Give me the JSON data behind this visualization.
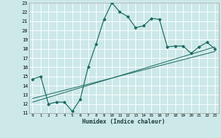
{
  "title": "",
  "xlabel": "Humidex (Indice chaleur)",
  "bg_color": "#cce8e8",
  "grid_color": "#ffffff",
  "line_color": "#1a6b60",
  "xlim": [
    -0.5,
    23.5
  ],
  "ylim": [
    11,
    23
  ],
  "xticks": [
    0,
    1,
    2,
    3,
    4,
    5,
    6,
    7,
    8,
    9,
    10,
    11,
    12,
    13,
    14,
    15,
    16,
    17,
    18,
    19,
    20,
    21,
    22,
    23
  ],
  "yticks": [
    11,
    12,
    13,
    14,
    15,
    16,
    17,
    18,
    19,
    20,
    21,
    22,
    23
  ],
  "curve1_x": [
    0,
    1,
    2,
    3,
    4,
    5,
    6,
    7,
    8,
    9,
    10,
    11,
    12,
    13,
    14,
    15,
    16,
    17,
    18,
    19,
    20,
    21,
    22,
    23
  ],
  "curve1_y": [
    14.7,
    15.0,
    12.0,
    12.2,
    12.2,
    11.2,
    12.5,
    16.0,
    18.5,
    21.2,
    23.0,
    22.0,
    21.5,
    20.3,
    20.5,
    21.3,
    21.2,
    18.2,
    18.3,
    18.3,
    17.5,
    18.2,
    18.7,
    18.0
  ],
  "line1_x": [
    0,
    23
  ],
  "line1_y": [
    12.2,
    18.2
  ],
  "line2_x": [
    0,
    23
  ],
  "line2_y": [
    12.6,
    17.7
  ]
}
